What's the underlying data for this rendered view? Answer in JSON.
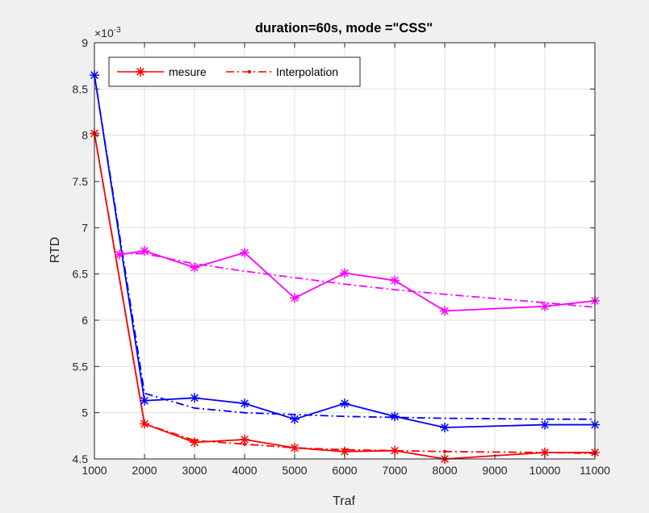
{
  "colors": {
    "background": "#f0f0f0",
    "axes_bg": "#ffffff",
    "grid": "#dfdfdf",
    "axis": "#262626",
    "red": "#ff0000",
    "blue": "#0000ff",
    "magenta": "#ff00ff"
  },
  "chart_data": {
    "type": "line",
    "title": "duration=60s, mode =\"CSS\"",
    "xlabel": "Traf",
    "ylabel": "RTD",
    "exponent_label": "×10",
    "exponent_power": "-3",
    "xlim": [
      1000,
      11000
    ],
    "ylim": [
      4.5,
      9
    ],
    "y_scale_factor": 0.001,
    "xticks": [
      1000,
      2000,
      3000,
      4000,
      5000,
      6000,
      7000,
      8000,
      9000,
      10000,
      11000
    ],
    "xtick_labels": [
      "1000",
      "2000",
      "3000",
      "4000",
      "5000",
      "6000",
      "7000",
      "8000",
      "9000",
      "10000",
      "11000"
    ],
    "yticks": [
      4.5,
      5,
      5.5,
      6,
      6.5,
      7,
      7.5,
      8,
      8.5,
      9
    ],
    "ytick_labels": [
      "4.5",
      "5",
      "5.5",
      "6",
      "6.5",
      "7",
      "7.5",
      "8",
      "8.5",
      "9"
    ],
    "grid": true,
    "legend": {
      "placement": "top-left",
      "entries": [
        "mesure",
        "Interpolation"
      ]
    },
    "series": [
      {
        "name": "mesure",
        "color": "red",
        "style": "solid",
        "marker": "asterisk",
        "x": [
          1000,
          2000,
          3000,
          4000,
          5000,
          6000,
          7000,
          8000,
          10000,
          11000
        ],
        "y": [
          8.02,
          4.88,
          4.68,
          4.71,
          4.62,
          4.58,
          4.59,
          4.5,
          4.57,
          4.57
        ]
      },
      {
        "name": "Interpolation",
        "color": "red",
        "style": "dashdot",
        "marker": "dot",
        "x": [
          1000,
          2000,
          3000,
          4000,
          5000,
          6000,
          7000,
          8000,
          10000,
          11000
        ],
        "y": [
          8.02,
          4.88,
          4.7,
          4.66,
          4.62,
          4.6,
          4.59,
          4.58,
          4.57,
          4.56
        ]
      },
      {
        "color": "blue",
        "style": "solid",
        "marker": "asterisk",
        "x": [
          1000,
          2000,
          3000,
          4000,
          5000,
          6000,
          7000,
          8000,
          10000,
          11000
        ],
        "y": [
          8.65,
          5.13,
          5.16,
          5.1,
          4.93,
          5.1,
          4.96,
          4.84,
          4.87,
          4.87
        ]
      },
      {
        "color": "blue",
        "style": "dashdot",
        "marker": "none",
        "x": [
          1000,
          2000,
          3000,
          4000,
          5000,
          6000,
          7000,
          8000,
          10000,
          11000
        ],
        "y": [
          8.65,
          5.21,
          5.05,
          5.0,
          4.98,
          4.96,
          4.95,
          4.94,
          4.93,
          4.93
        ]
      },
      {
        "color": "magenta",
        "style": "solid",
        "marker": "asterisk",
        "x": [
          1500,
          2000,
          3000,
          4000,
          5000,
          6000,
          7000,
          8000,
          10000,
          11000
        ],
        "y": [
          6.71,
          6.75,
          6.57,
          6.73,
          6.24,
          6.51,
          6.43,
          6.1,
          6.15,
          6.21
        ]
      },
      {
        "color": "magenta",
        "style": "dashdot",
        "marker": "none",
        "x": [
          1500,
          2000,
          3000,
          4000,
          5000,
          6000,
          7000,
          8000,
          10000,
          11000
        ],
        "y": [
          6.72,
          6.72,
          6.61,
          6.53,
          6.46,
          6.39,
          6.33,
          6.28,
          6.19,
          6.14
        ]
      }
    ]
  }
}
